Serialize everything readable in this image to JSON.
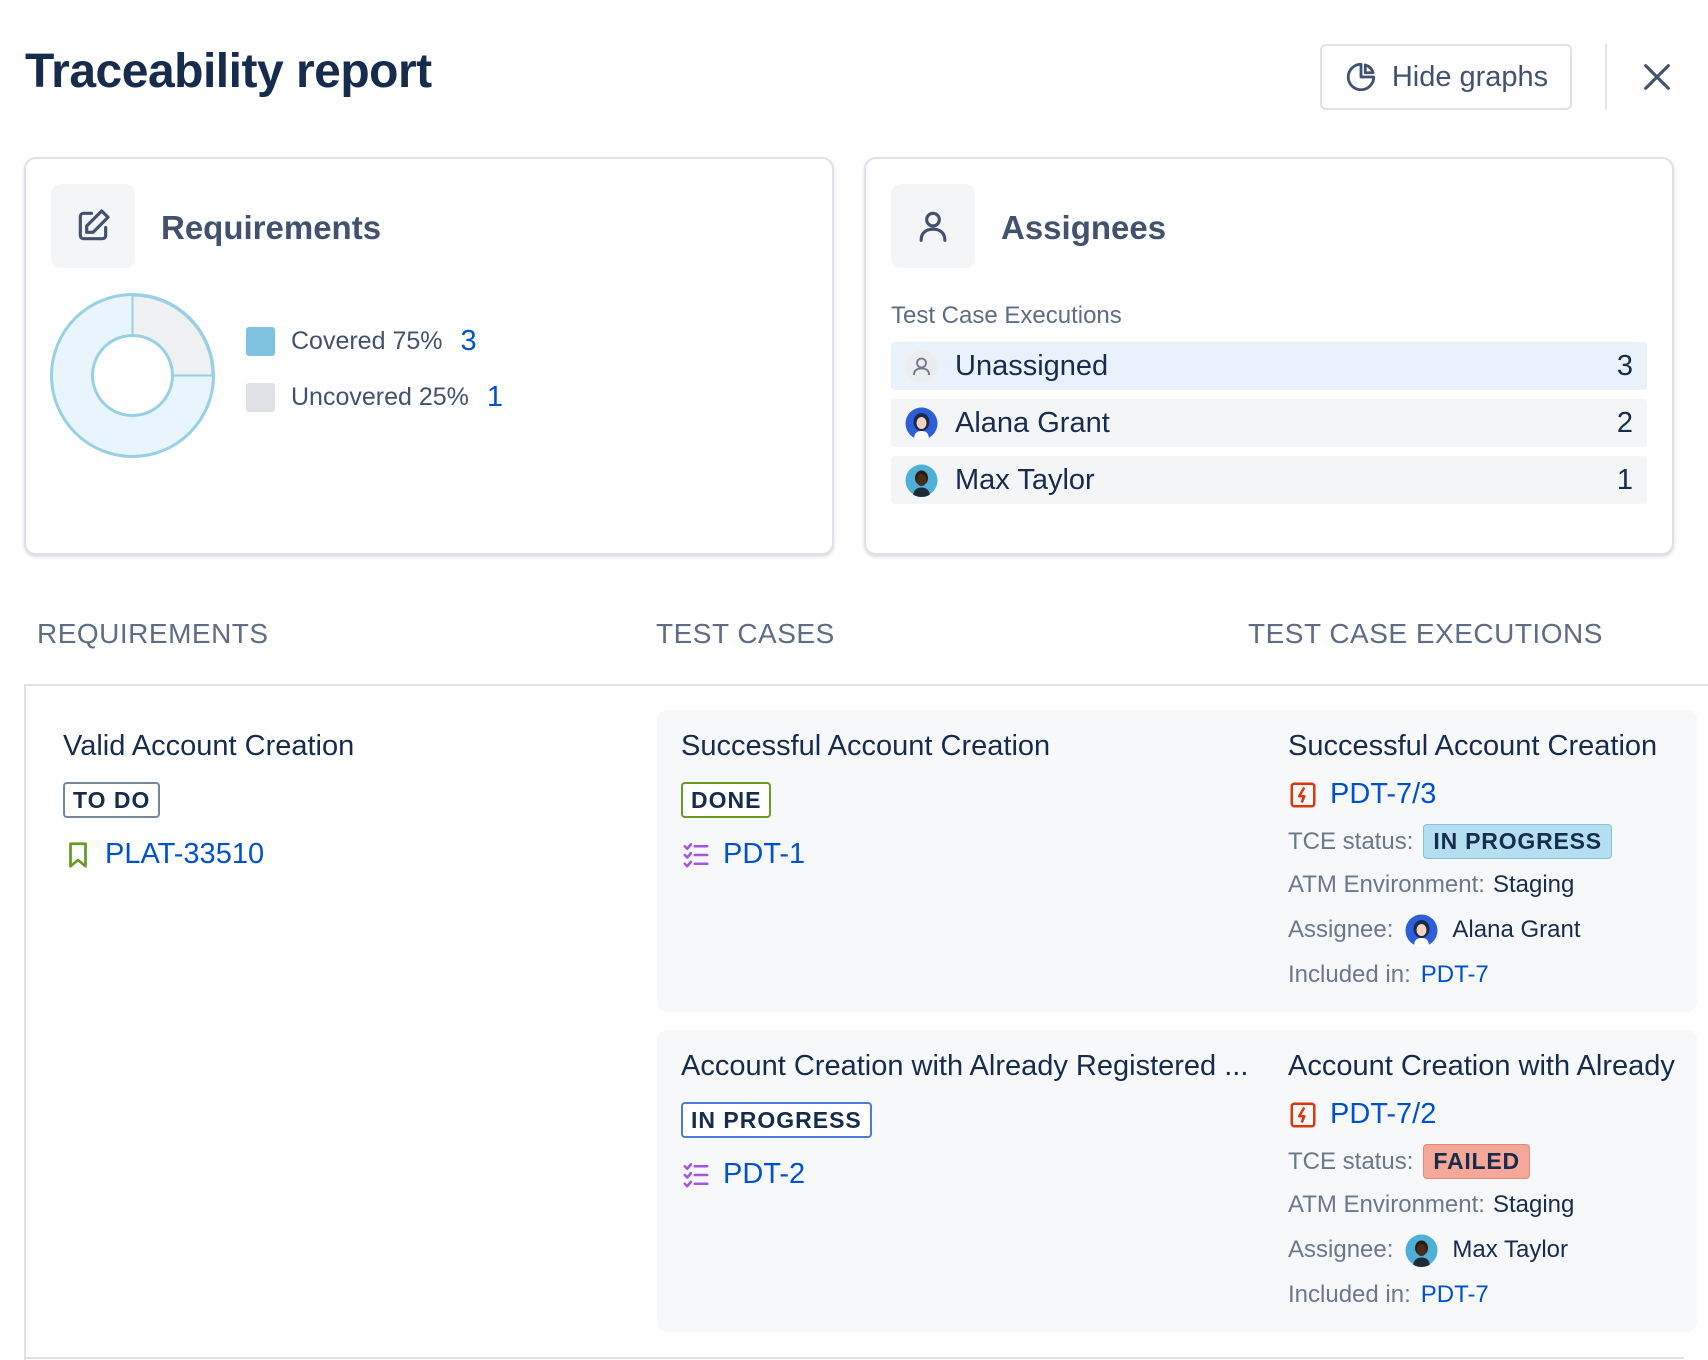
{
  "header": {
    "title": "Traceability report",
    "hide_graphs_label": "Hide graphs"
  },
  "requirements_card": {
    "title": "Requirements",
    "legend": [
      {
        "label": "Covered 75%",
        "count": "3",
        "color": "#7fc3e0"
      },
      {
        "label": "Uncovered 25%",
        "count": "1",
        "color": "#dfe1e6"
      }
    ]
  },
  "assignees_card": {
    "title": "Assignees",
    "subtitle": "Test Case Executions",
    "rows": [
      {
        "name": "Unassigned",
        "count": "3"
      },
      {
        "name": "Alana Grant",
        "count": "2"
      },
      {
        "name": "Max Taylor",
        "count": "1"
      }
    ]
  },
  "columns": {
    "requirements": "REQUIREMENTS",
    "test_cases": "TEST CASES",
    "test_case_executions": "TEST CASE EXECUTIONS"
  },
  "requirement": {
    "title": "Valid Account Creation",
    "status": "TO DO",
    "key": "PLAT-33510"
  },
  "labels": {
    "tce_status": "TCE status:",
    "environment": "ATM Environment:",
    "assignee": "Assignee:",
    "included_in": "Included in:"
  },
  "test_cases": [
    {
      "title": "Successful Account Creation",
      "status": "DONE",
      "key": "PDT-1",
      "execution": {
        "title": "Successful Account Creation",
        "key": "PDT-7/3",
        "tce_status": "IN PROGRESS",
        "environment": "Staging",
        "assignee": "Alana Grant",
        "included_in": "PDT-7"
      }
    },
    {
      "title": "Account Creation with Already Registered ...",
      "status": "IN PROGRESS",
      "key": "PDT-2",
      "execution": {
        "title": "Account Creation with Already",
        "key": "PDT-7/2",
        "tce_status": "FAILED",
        "environment": "Staging",
        "assignee": "Max Taylor",
        "included_in": "PDT-7"
      }
    }
  ],
  "colors": {
    "link": "#0052cc",
    "covered": "#7fc3e0",
    "uncovered": "#dfe1e6",
    "done": "#6a9a23",
    "in_progress": "#0052cc",
    "failed_bg": "#f5a89a",
    "in_progress_bg": "#b3dff0"
  }
}
